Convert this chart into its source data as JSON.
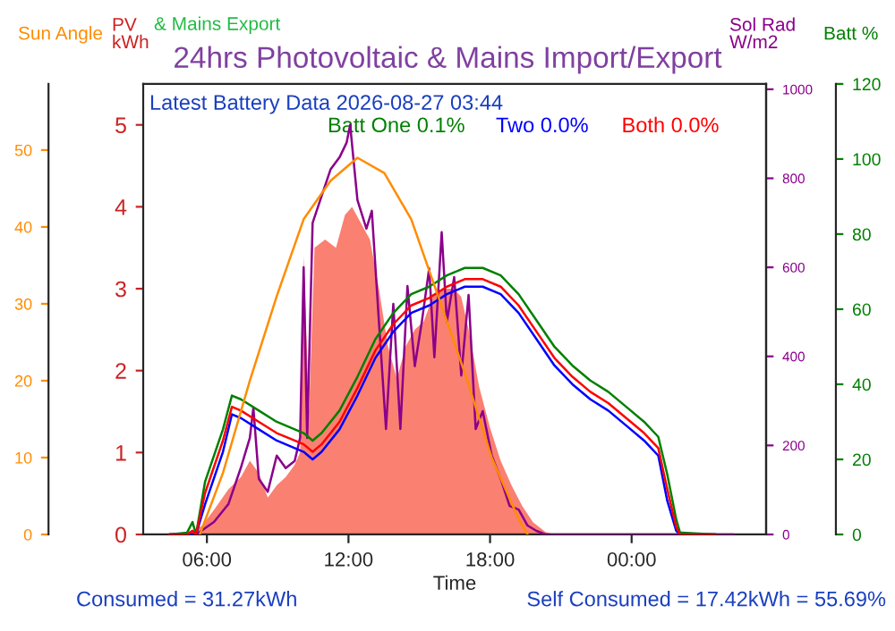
{
  "chart_data": [
    {
      "type": "line",
      "title": "24hrs Photovoltaic & Mains Import/Export",
      "xlabel": "Time",
      "ylabel": "PV\nkWh",
      "y2label": "Sol Rad\nW/m2",
      "y3label": "Batt %",
      "annotations": [
        "Latest Battery Data 2026-08-27 03:44",
        "& Mains Export",
        "Consumed = 31.27kWh",
        "Self Consumed = 17.42kWh = 55.69%"
      ],
      "xlim": [
        3.3,
        29.7
      ],
      "xticks": [
        {
          "value": 6,
          "label": "06:00"
        },
        {
          "value": 12,
          "label": "12:00"
        },
        {
          "value": 18,
          "label": "18:00"
        },
        {
          "value": 24,
          "label": "00:00"
        }
      ],
      "ylim": [
        0,
        5.5
      ],
      "yticks": [
        0,
        1,
        2,
        3,
        4,
        5
      ],
      "y2lim": [
        0,
        1012
      ],
      "y2ticks": [
        0,
        200,
        400,
        600,
        800,
        1000
      ],
      "y3lim": [
        0,
        120
      ],
      "y3ticks": [
        0,
        20,
        40,
        60,
        80,
        100,
        120
      ],
      "series": [
        {
          "type": "area",
          "axis": "y",
          "color": "#fa8072",
          "x": [
            4.78,
            5.39,
            5.77,
            6.3,
            6.91,
            7.44,
            7.82,
            8.2,
            8.58,
            8.96,
            9.34,
            9.72,
            9.95,
            10.1,
            10.33,
            10.56,
            11.01,
            11.47,
            11.85,
            12.15,
            12.53,
            12.91,
            13.29,
            13.67,
            14.05,
            14.43,
            14.81,
            15.19,
            15.57,
            16.02,
            16.48,
            16.78,
            17.09,
            17.54,
            18.0,
            18.45,
            18.91,
            19.36,
            19.82,
            20.35,
            20.73
          ],
          "values": [
            0,
            0.05,
            0.1,
            0.3,
            0.55,
            0.7,
            0.9,
            0.75,
            0.45,
            0.6,
            0.7,
            0.85,
            1.0,
            3.4,
            1.5,
            3.5,
            3.6,
            3.5,
            3.9,
            4.0,
            3.8,
            3.6,
            3.0,
            2.3,
            1.9,
            2.3,
            2.5,
            2.6,
            2.9,
            3.0,
            3.0,
            2.9,
            2.5,
            1.8,
            1.3,
            0.9,
            0.6,
            0.35,
            0.15,
            0.03,
            0
          ]
        },
        {
          "axis": "y2",
          "color": "#8b008b",
          "x": [
            4.41,
            5.54,
            6.3,
            6.91,
            7.44,
            7.82,
            7.97,
            8.2,
            8.58,
            8.96,
            9.34,
            9.72,
            9.95,
            10.1,
            10.25,
            10.48,
            10.86,
            11.24,
            11.62,
            11.92,
            12.07,
            12.38,
            12.76,
            12.99,
            13.29,
            13.59,
            13.9,
            14.2,
            14.5,
            14.81,
            15.11,
            15.42,
            15.64,
            15.95,
            16.17,
            16.48,
            16.78,
            17.09,
            17.39,
            17.69,
            18.07,
            18.45,
            18.83,
            19.21,
            19.59,
            19.97,
            20.35,
            28.32
          ],
          "values": [
            0,
            0,
            28,
            68,
            150,
            217,
            285,
            125,
            96,
            177,
            149,
            165,
            217,
            600,
            217,
            700,
            760,
            820,
            847,
            880,
            920,
            751,
            687,
            727,
            478,
            237,
            518,
            237,
            558,
            378,
            478,
            598,
            398,
            679,
            478,
            578,
            357,
            538,
            237,
            277,
            177,
            125,
            64,
            56,
            20,
            8,
            0,
            0
          ]
        },
        {
          "axis": "y3",
          "name": "Batt One 0.1%",
          "color": "#008000",
          "x": [
            4.41,
            5.16,
            5.39,
            5.54,
            5.92,
            6.68,
            7.06,
            7.44,
            8.2,
            8.96,
            9.72,
            10.1,
            10.48,
            10.86,
            11.62,
            12.38,
            13.14,
            13.9,
            14.66,
            15.42,
            16.17,
            16.93,
            17.69,
            18.45,
            19.21,
            19.97,
            20.73,
            21.49,
            22.25,
            23.01,
            23.77,
            24.53,
            25.13,
            25.51,
            25.89,
            26.05,
            27.56
          ],
          "values": [
            0,
            0.5,
            3.3,
            0,
            14,
            28,
            37,
            36,
            33,
            30,
            28,
            27,
            25,
            27,
            33,
            42,
            52,
            59,
            64,
            66,
            69,
            71,
            71,
            69,
            64,
            57,
            50,
            45,
            41,
            38,
            34,
            30,
            26,
            16,
            4,
            0.5,
            0
          ]
        },
        {
          "axis": "y3",
          "name": "Two 0.0%",
          "color": "#0000ff",
          "x": [
            4.41,
            5.16,
            5.39,
            5.54,
            5.92,
            6.68,
            7.06,
            7.44,
            8.2,
            8.96,
            9.72,
            10.1,
            10.48,
            10.86,
            11.62,
            12.38,
            13.14,
            13.9,
            14.66,
            15.42,
            16.17,
            16.93,
            17.69,
            18.45,
            19.21,
            19.97,
            20.73,
            21.49,
            22.25,
            23.01,
            23.77,
            24.53,
            25.13,
            25.51,
            25.89,
            26.05,
            27.56
          ],
          "values": [
            0,
            0,
            0,
            0,
            8,
            22,
            32,
            31,
            28,
            25,
            23,
            22,
            20,
            22,
            28,
            37,
            47,
            54,
            59,
            61,
            64,
            66,
            66,
            64,
            59,
            52,
            45,
            40,
            36,
            33,
            29,
            25,
            21,
            9,
            1,
            0,
            0
          ]
        },
        {
          "axis": "y3",
          "name": "Both 0.0%",
          "color": "#ff0000",
          "x": [
            4.41,
            5.16,
            5.39,
            5.54,
            5.92,
            6.68,
            7.06,
            7.44,
            8.2,
            8.96,
            9.72,
            10.1,
            10.48,
            10.86,
            11.62,
            12.38,
            13.14,
            13.9,
            14.66,
            15.42,
            16.17,
            16.93,
            17.69,
            18.45,
            19.21,
            19.97,
            20.73,
            21.49,
            22.25,
            23.01,
            23.77,
            24.53,
            25.13,
            25.51,
            25.89,
            26.05,
            27.56
          ],
          "values": [
            0,
            0,
            1,
            0,
            11,
            25,
            34,
            33,
            30,
            27,
            25,
            24,
            22,
            24,
            30,
            39,
            49,
            56,
            61,
            63,
            66,
            68,
            68,
            66,
            61,
            54,
            47,
            42,
            38,
            35,
            31,
            27,
            23,
            12,
            2,
            0,
            0
          ]
        }
      ]
    },
    {
      "type": "line",
      "ylabel": "Sun Angle",
      "xlim": [
        3.3,
        29.7
      ],
      "ylim": [
        0,
        58.6
      ],
      "yticks": [
        0,
        10,
        20,
        30,
        40,
        50
      ],
      "tick_labels": "y",
      "series": [
        {
          "color": "#ff8c00",
          "x": [
            5.7,
            6.68,
            7.82,
            8.96,
            10.1,
            11.24,
            12.38,
            13.52,
            14.66,
            15.8,
            16.93,
            18.07,
            19.21,
            19.59
          ],
          "values": [
            0,
            8,
            20,
            31,
            41,
            46,
            49,
            47,
            41,
            31,
            21,
            10,
            2,
            0
          ]
        }
      ]
    }
  ]
}
